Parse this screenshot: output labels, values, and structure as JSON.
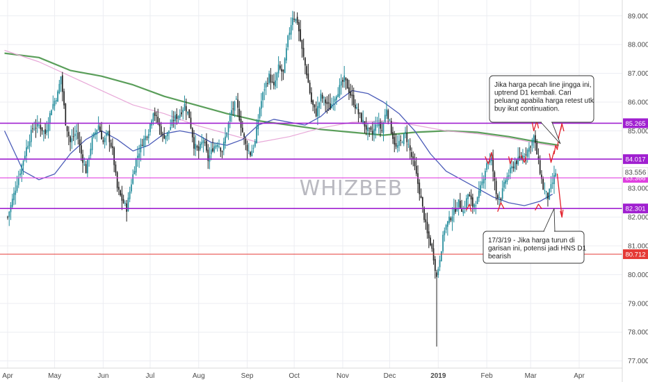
{
  "watermark": "WHIZBEB",
  "chart_data": {
    "type": "candlestick",
    "x_ticks": [
      {
        "label": "Apr",
        "day": 0
      },
      {
        "label": "May",
        "day": 30
      },
      {
        "label": "Jun",
        "day": 61
      },
      {
        "label": "Jul",
        "day": 91
      },
      {
        "label": "Aug",
        "day": 122
      },
      {
        "label": "Sep",
        "day": 153
      },
      {
        "label": "Oct",
        "day": 183
      },
      {
        "label": "Nov",
        "day": 214
      },
      {
        "label": "Dec",
        "day": 244
      },
      {
        "label": "2019",
        "day": 275
      },
      {
        "label": "Feb",
        "day": 306
      },
      {
        "label": "Mar",
        "day": 334
      },
      {
        "label": "Apr",
        "day": 365
      }
    ],
    "ylim": [
      76.75,
      89.55
    ],
    "y_ticks": [
      "77.000",
      "78.000",
      "79.000",
      "80.000",
      "81.000",
      "82.000",
      "83.000",
      "84.000",
      "85.000",
      "86.000",
      "87.000",
      "88.000",
      "89.000"
    ],
    "price_path": [
      [
        0,
        82.0
      ],
      [
        5,
        83.0
      ],
      [
        8,
        83.6
      ],
      [
        12,
        84.4
      ],
      [
        16,
        85.1
      ],
      [
        20,
        85.2
      ],
      [
        24,
        84.9
      ],
      [
        28,
        85.8
      ],
      [
        32,
        86.3
      ],
      [
        34,
        86.9
      ],
      [
        37,
        85.3
      ],
      [
        40,
        84.6
      ],
      [
        44,
        85.0
      ],
      [
        47,
        84.2
      ],
      [
        50,
        83.6
      ],
      [
        54,
        84.7
      ],
      [
        58,
        85.2
      ],
      [
        61,
        84.6
      ],
      [
        64,
        84.9
      ],
      [
        67,
        84.3
      ],
      [
        70,
        83.0
      ],
      [
        73,
        82.6
      ],
      [
        76,
        82.3
      ],
      [
        79,
        83.2
      ],
      [
        82,
        84.0
      ],
      [
        86,
        84.6
      ],
      [
        90,
        85.0
      ],
      [
        93,
        85.7
      ],
      [
        96,
        85.3
      ],
      [
        99,
        84.8
      ],
      [
        102,
        84.9
      ],
      [
        106,
        85.4
      ],
      [
        110,
        85.6
      ],
      [
        113,
        85.9
      ],
      [
        116,
        85.5
      ],
      [
        119,
        84.5
      ],
      [
        122,
        84.3
      ],
      [
        125,
        84.7
      ],
      [
        128,
        84.0
      ],
      [
        131,
        84.4
      ],
      [
        134,
        84.6
      ],
      [
        137,
        84.3
      ],
      [
        140,
        85.0
      ],
      [
        143,
        85.7
      ],
      [
        146,
        86.0
      ],
      [
        149,
        85.2
      ],
      [
        152,
        84.5
      ],
      [
        155,
        84.2
      ],
      [
        158,
        84.6
      ],
      [
        161,
        85.8
      ],
      [
        164,
        86.5
      ],
      [
        167,
        86.9
      ],
      [
        170,
        86.5
      ],
      [
        173,
        87.2
      ],
      [
        176,
        87.0
      ],
      [
        179,
        88.2
      ],
      [
        182,
        89.0
      ],
      [
        185,
        88.8
      ],
      [
        188,
        87.8
      ],
      [
        191,
        87.0
      ],
      [
        194,
        86.0
      ],
      [
        197,
        85.6
      ],
      [
        200,
        86.2
      ],
      [
        203,
        86.0
      ],
      [
        206,
        85.8
      ],
      [
        209,
        86.2
      ],
      [
        212,
        86.5
      ],
      [
        215,
        86.8
      ],
      [
        218,
        86.4
      ],
      [
        221,
        86.0
      ],
      [
        224,
        85.6
      ],
      [
        227,
        85.3
      ],
      [
        230,
        85.0
      ],
      [
        233,
        84.9
      ],
      [
        236,
        85.3
      ],
      [
        239,
        85.0
      ],
      [
        242,
        85.8
      ],
      [
        245,
        85.0
      ],
      [
        248,
        84.4
      ],
      [
        251,
        84.6
      ],
      [
        254,
        84.9
      ],
      [
        257,
        84.3
      ],
      [
        260,
        83.7
      ],
      [
        263,
        82.9
      ],
      [
        266,
        82.0
      ],
      [
        268,
        81.4
      ],
      [
        270,
        81.1
      ],
      [
        272,
        80.6
      ],
      [
        274,
        79.9
      ],
      [
        276,
        80.6
      ],
      [
        279,
        81.6
      ],
      [
        282,
        81.9
      ],
      [
        285,
        82.2
      ],
      [
        288,
        82.5
      ],
      [
        291,
        82.2
      ],
      [
        294,
        82.8
      ],
      [
        297,
        82.4
      ],
      [
        300,
        82.6
      ],
      [
        303,
        83.2
      ],
      [
        306,
        83.9
      ],
      [
        309,
        84.0
      ],
      [
        312,
        82.8
      ],
      [
        315,
        82.7
      ],
      [
        318,
        83.3
      ],
      [
        321,
        83.6
      ],
      [
        324,
        83.9
      ],
      [
        327,
        84.0
      ],
      [
        330,
        84.2
      ],
      [
        333,
        84.4
      ],
      [
        336,
        84.8
      ],
      [
        338,
        84.2
      ],
      [
        340,
        83.6
      ],
      [
        342,
        83.0
      ],
      [
        345,
        82.7
      ],
      [
        348,
        83.2
      ],
      [
        350,
        83.556
      ]
    ],
    "spikes": [
      {
        "day": 183,
        "high": 89.15
      },
      {
        "day": 274,
        "low": 77.5
      }
    ],
    "series": [
      {
        "name": "",
        "color": "#5a9e5a",
        "width": 2.2,
        "points": [
          [
            -2,
            87.7
          ],
          [
            20,
            87.55
          ],
          [
            40,
            87.1
          ],
          [
            60,
            86.9
          ],
          [
            80,
            86.6
          ],
          [
            100,
            86.2
          ],
          [
            120,
            85.9
          ],
          [
            140,
            85.6
          ],
          [
            160,
            85.35
          ],
          [
            180,
            85.2
          ],
          [
            200,
            85.05
          ],
          [
            220,
            84.95
          ],
          [
            240,
            84.85
          ],
          [
            260,
            84.95
          ],
          [
            280,
            85.0
          ],
          [
            300,
            84.95
          ],
          [
            320,
            84.8
          ],
          [
            340,
            84.6
          ],
          [
            352,
            84.5
          ]
        ]
      },
      {
        "name": "",
        "color": "#e8a8d8",
        "width": 1.2,
        "points": [
          [
            -2,
            87.8
          ],
          [
            20,
            87.4
          ],
          [
            40,
            86.9
          ],
          [
            60,
            86.4
          ],
          [
            80,
            85.9
          ],
          [
            100,
            85.6
          ],
          [
            120,
            85.2
          ],
          [
            140,
            84.9
          ],
          [
            160,
            84.6
          ],
          [
            180,
            84.8
          ],
          [
            200,
            85.1
          ],
          [
            220,
            85.3
          ],
          [
            240,
            85.35
          ],
          [
            260,
            85.2
          ],
          [
            280,
            85.0
          ],
          [
            300,
            84.9
          ],
          [
            320,
            84.75
          ],
          [
            340,
            84.55
          ],
          [
            352,
            84.45
          ]
        ]
      },
      {
        "name": "",
        "color": "#4a5bb8",
        "width": 1.3,
        "points": [
          [
            -2,
            85.0
          ],
          [
            10,
            83.6
          ],
          [
            20,
            83.3
          ],
          [
            30,
            83.5
          ],
          [
            40,
            84.2
          ],
          [
            50,
            84.7
          ],
          [
            60,
            85.0
          ],
          [
            70,
            84.7
          ],
          [
            80,
            84.3
          ],
          [
            90,
            84.5
          ],
          [
            100,
            84.9
          ],
          [
            110,
            85.0
          ],
          [
            120,
            84.9
          ],
          [
            130,
            84.6
          ],
          [
            140,
            84.5
          ],
          [
            150,
            84.7
          ],
          [
            160,
            85.2
          ],
          [
            170,
            85.4
          ],
          [
            180,
            85.3
          ],
          [
            190,
            85.2
          ],
          [
            200,
            85.5
          ],
          [
            210,
            86.0
          ],
          [
            220,
            86.4
          ],
          [
            230,
            86.3
          ],
          [
            240,
            86.0
          ],
          [
            250,
            85.6
          ],
          [
            260,
            85.0
          ],
          [
            270,
            84.2
          ],
          [
            280,
            83.6
          ],
          [
            290,
            83.3
          ],
          [
            300,
            83.0
          ],
          [
            310,
            82.7
          ],
          [
            320,
            82.5
          ],
          [
            330,
            82.4
          ],
          [
            340,
            82.55
          ],
          [
            348,
            82.8
          ]
        ]
      }
    ],
    "levels": [
      {
        "value": 85.265,
        "label": "85.265",
        "color": "#a020d0",
        "width": 1.6
      },
      {
        "value": 84.017,
        "label": "84.017",
        "color": "#a020d0",
        "width": 1.6
      },
      {
        "value": 83.366,
        "label": "83.366",
        "color": "#e040e0",
        "width": 1.2
      },
      {
        "value": 82.301,
        "label": "82.301",
        "color": "#a020d0",
        "width": 1.6
      },
      {
        "value": 80.712,
        "label": "80.712",
        "color": "#e53935",
        "width": 1.0
      }
    ],
    "last_price": {
      "value": 83.556,
      "label": "83.556"
    },
    "colors": {
      "up": "#1f8a9a",
      "down": "#202020",
      "annotation": "#e3202a",
      "grid": "#ecedf2"
    },
    "annotations": [
      {
        "lines": [
          "Jika harga pecah line jingga ini,",
          "uptrend D1 kembali. Cari",
          "peluang apabila harga retest utk",
          "buy ikut continuation."
        ]
      },
      {
        "lines": [
          "17/3/19 - Jika harga turun di",
          "garisan ini, potensi jadi HNS D1",
          "bearish"
        ]
      }
    ]
  }
}
